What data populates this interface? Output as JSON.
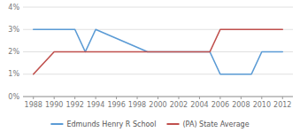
{
  "chart_data": {
    "type": "line",
    "series": [
      {
        "name": "Edmunds Henry R School",
        "color": "#5b9bd5",
        "x": [
          1988,
          1992,
          1993,
          1994,
          1999,
          2005,
          2006,
          2009,
          2010,
          2012
        ],
        "values": [
          3,
          3,
          2,
          3,
          2,
          2,
          1,
          1,
          2,
          2
        ]
      },
      {
        "name": "(PA) State Average",
        "color": "#c0504d",
        "x": [
          1988,
          1990,
          2005,
          2006,
          2012
        ],
        "values": [
          1,
          2,
          2,
          3,
          3
        ]
      }
    ],
    "xlim": [
      1987,
      2013
    ],
    "ylim": [
      0,
      4
    ],
    "xticks": [
      1988,
      1990,
      1992,
      1994,
      1996,
      1998,
      2000,
      2002,
      2004,
      2006,
      2008,
      2010,
      2012
    ],
    "yticks": [
      {
        "value": 0,
        "label": "0%"
      },
      {
        "value": 1,
        "label": "1%"
      },
      {
        "value": 2,
        "label": "2%"
      },
      {
        "value": 3,
        "label": "3%"
      },
      {
        "value": 4,
        "label": "4%"
      }
    ],
    "grid": true,
    "legend": "bottom"
  }
}
